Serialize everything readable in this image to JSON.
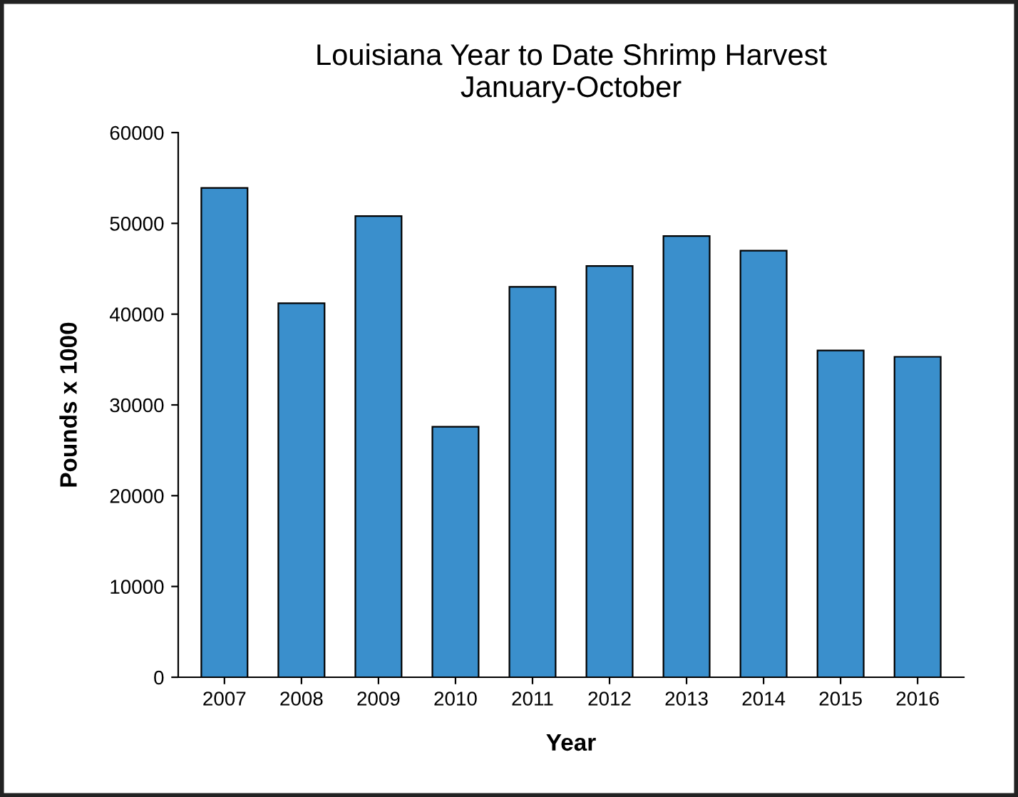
{
  "chart_data": {
    "type": "bar",
    "title": "Louisiana Year to Date Shrimp Harvest\nJanuary-October",
    "xlabel": "Year",
    "ylabel": "Pounds x 1000",
    "categories": [
      "2007",
      "2008",
      "2009",
      "2010",
      "2011",
      "2012",
      "2013",
      "2014",
      "2015",
      "2016"
    ],
    "values": [
      53900,
      41200,
      50800,
      27600,
      43000,
      45300,
      48600,
      47000,
      36000,
      35300
    ],
    "color": "#3a8fcc",
    "ylim": [
      0,
      60000
    ],
    "yticks": [
      0,
      10000,
      20000,
      30000,
      40000,
      50000,
      60000
    ],
    "grid": false,
    "legend": false
  }
}
